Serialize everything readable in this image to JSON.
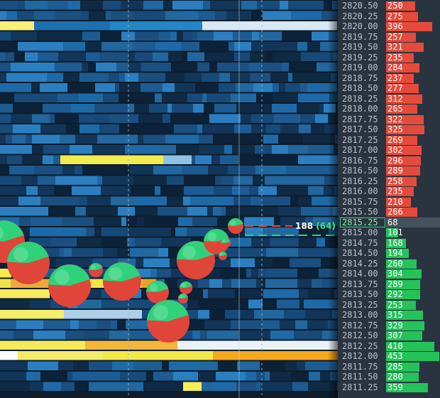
{
  "colors": {
    "ask": "#e54b3c",
    "bid": "#25c25a",
    "last_price_border": "#2ed870"
  },
  "trade_marker": {
    "volume": "188",
    "delta": "(64)"
  },
  "ladder": [
    {
      "price": "2820.50",
      "size": "250",
      "side": "ask"
    },
    {
      "price": "2820.25",
      "size": "275",
      "side": "ask"
    },
    {
      "price": "2820.00",
      "size": "396",
      "side": "ask"
    },
    {
      "price": "2819.75",
      "size": "257",
      "side": "ask"
    },
    {
      "price": "2819.50",
      "size": "321",
      "side": "ask"
    },
    {
      "price": "2819.25",
      "size": "235",
      "side": "ask"
    },
    {
      "price": "2819.00",
      "size": "284",
      "side": "ask"
    },
    {
      "price": "2818.75",
      "size": "237",
      "side": "ask"
    },
    {
      "price": "2818.50",
      "size": "277",
      "side": "ask"
    },
    {
      "price": "2818.25",
      "size": "312",
      "side": "ask"
    },
    {
      "price": "2818.00",
      "size": "265",
      "side": "ask"
    },
    {
      "price": "2817.75",
      "size": "322",
      "side": "ask"
    },
    {
      "price": "2817.50",
      "size": "325",
      "side": "ask"
    },
    {
      "price": "2817.25",
      "size": "269",
      "side": "ask"
    },
    {
      "price": "2817.00",
      "size": "302",
      "side": "ask"
    },
    {
      "price": "2816.75",
      "size": "296",
      "side": "ask"
    },
    {
      "price": "2816.50",
      "size": "289",
      "side": "ask"
    },
    {
      "price": "2816.25",
      "size": "258",
      "side": "ask"
    },
    {
      "price": "2816.00",
      "size": "235",
      "side": "ask"
    },
    {
      "price": "2815.75",
      "size": "210",
      "side": "ask"
    },
    {
      "price": "2815.50",
      "size": "266",
      "side": "ask"
    },
    {
      "price": "2815.25",
      "size": "68",
      "side": "last"
    },
    {
      "price": "2815.00",
      "size": "101",
      "side": "bid"
    },
    {
      "price": "2814.75",
      "size": "168",
      "side": "bid"
    },
    {
      "price": "2814.50",
      "size": "194",
      "side": "bid"
    },
    {
      "price": "2814.25",
      "size": "260",
      "side": "bid"
    },
    {
      "price": "2814.00",
      "size": "304",
      "side": "bid"
    },
    {
      "price": "2813.75",
      "size": "289",
      "side": "bid"
    },
    {
      "price": "2813.50",
      "size": "292",
      "side": "bid"
    },
    {
      "price": "2813.25",
      "size": "253",
      "side": "bid"
    },
    {
      "price": "2813.00",
      "size": "315",
      "side": "bid"
    },
    {
      "price": "2812.75",
      "size": "329",
      "side": "bid"
    },
    {
      "price": "2812.50",
      "size": "307",
      "side": "bid"
    },
    {
      "price": "2812.25",
      "size": "410",
      "side": "bid"
    },
    {
      "price": "2812.00",
      "size": "453",
      "side": "bid"
    },
    {
      "price": "2811.75",
      "size": "285",
      "side": "bid"
    },
    {
      "price": "2811.50",
      "size": "280",
      "side": "bid"
    },
    {
      "price": "2811.25",
      "size": "359",
      "side": "bid"
    }
  ]
}
